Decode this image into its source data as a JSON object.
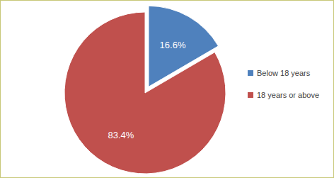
{
  "chart_data": {
    "type": "pie",
    "categories": [
      "Below 18 years",
      "18 years or above"
    ],
    "values": [
      16.6,
      83.4
    ],
    "value_labels": [
      "16.6%",
      "83.4%"
    ],
    "colors": [
      "#4f81bd",
      "#c0504d"
    ],
    "data_labels": true,
    "legend": "right"
  }
}
